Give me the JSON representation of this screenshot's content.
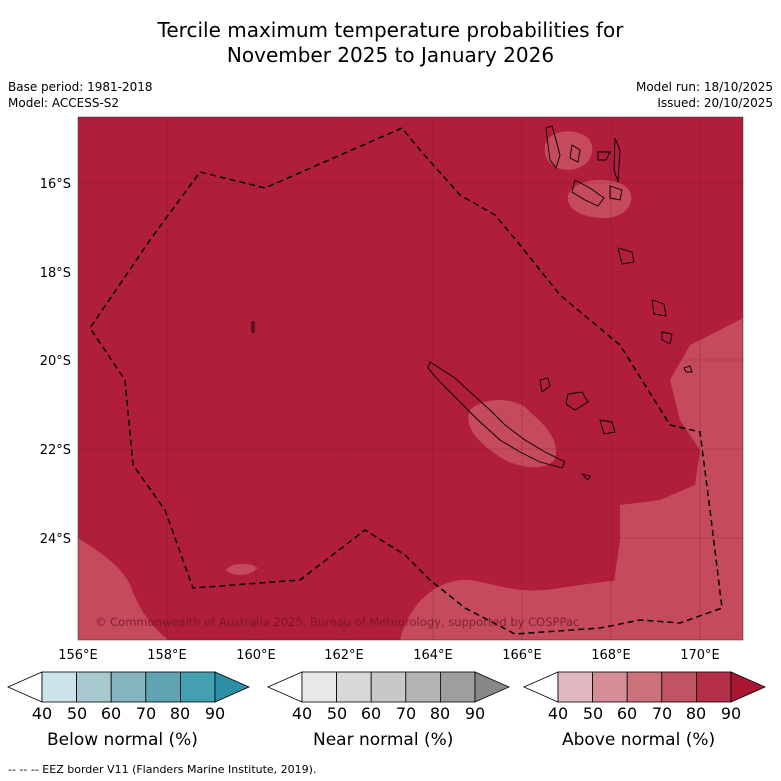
{
  "title": {
    "line1": "Tercile maximum temperature probabilities for",
    "line2": "November 2025 to January 2026"
  },
  "meta": {
    "base_period": "Base period: 1981-2018",
    "model": "Model: ACCESS-S2",
    "model_run": "Model run: 18/10/2025",
    "issued": "Issued: 20/10/2025"
  },
  "map": {
    "lat_ticks": [
      "16°S",
      "18°S",
      "20°S",
      "22°S",
      "24°S"
    ],
    "lon_ticks": [
      "156°E",
      "158°E",
      "160°E",
      "162°E",
      "164°E",
      "166°E",
      "168°E",
      "170°E"
    ],
    "copyright": "© Commonwealth of Australia 2025, Bureau of Meteorology, supported by COSPPac",
    "dominant_category": "Above normal",
    "dominant_probability_band": "80-90",
    "colors": {
      "above_80": "#b01e3c",
      "above_70": "#c44a5c",
      "land_outline": "#000000"
    }
  },
  "colorbars": {
    "ticks": [
      "40",
      "50",
      "60",
      "70",
      "80",
      "90"
    ],
    "below": {
      "label": "Below normal (%)",
      "colors": [
        "#ffffff",
        "#cce3e9",
        "#a6c8cf",
        "#86b4bf",
        "#62a3b2",
        "#42a0b0",
        "#2d8fa3"
      ]
    },
    "near": {
      "label": "Near normal (%)",
      "colors": [
        "#ffffff",
        "#e8e8e8",
        "#d8d8d8",
        "#c8c8c8",
        "#b4b4b4",
        "#9e9e9e",
        "#888888"
      ]
    },
    "above": {
      "label": "Above normal (%)",
      "colors": [
        "#ffffff",
        "#e0b8bf",
        "#d48e97",
        "#cc727c",
        "#c05464",
        "#b42e48",
        "#a81634"
      ]
    }
  },
  "footer": "-- -- -- EEZ border V11 (Flanders Marine Institute, 2019)."
}
